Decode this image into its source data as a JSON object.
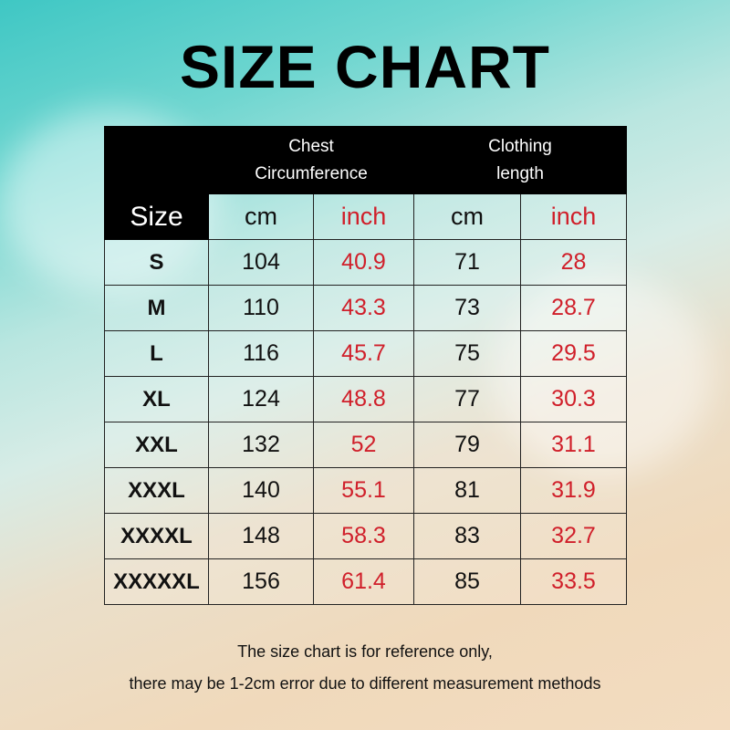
{
  "title": "SIZE CHART",
  "headers": {
    "chest": "Chest\nCircumference",
    "length": "Clothing\nlength",
    "size": "Size",
    "cm": "cm",
    "inch": "inch"
  },
  "colors": {
    "inch_values": "#d01f2a",
    "header_bg": "#000000"
  },
  "rows": [
    {
      "size": "S",
      "chest_cm": "104",
      "chest_inch": "40.9",
      "length_cm": "71",
      "length_inch": "28"
    },
    {
      "size": "M",
      "chest_cm": "110",
      "chest_inch": "43.3",
      "length_cm": "73",
      "length_inch": "28.7"
    },
    {
      "size": "L",
      "chest_cm": "116",
      "chest_inch": "45.7",
      "length_cm": "75",
      "length_inch": "29.5"
    },
    {
      "size": "XL",
      "chest_cm": "124",
      "chest_inch": "48.8",
      "length_cm": "77",
      "length_inch": "30.3"
    },
    {
      "size": "XXL",
      "chest_cm": "132",
      "chest_inch": "52",
      "length_cm": "79",
      "length_inch": "31.1"
    },
    {
      "size": "XXXL",
      "chest_cm": "140",
      "chest_inch": "55.1",
      "length_cm": "81",
      "length_inch": "31.9"
    },
    {
      "size": "XXXXL",
      "chest_cm": "148",
      "chest_inch": "58.3",
      "length_cm": "83",
      "length_inch": "32.7"
    },
    {
      "size": "XXXXXL",
      "chest_cm": "156",
      "chest_inch": "61.4",
      "length_cm": "85",
      "length_inch": "33.5"
    }
  ],
  "footer": {
    "line1": "The size chart is for reference only,",
    "line2": "there may be 1-2cm error due to different measurement methods"
  }
}
